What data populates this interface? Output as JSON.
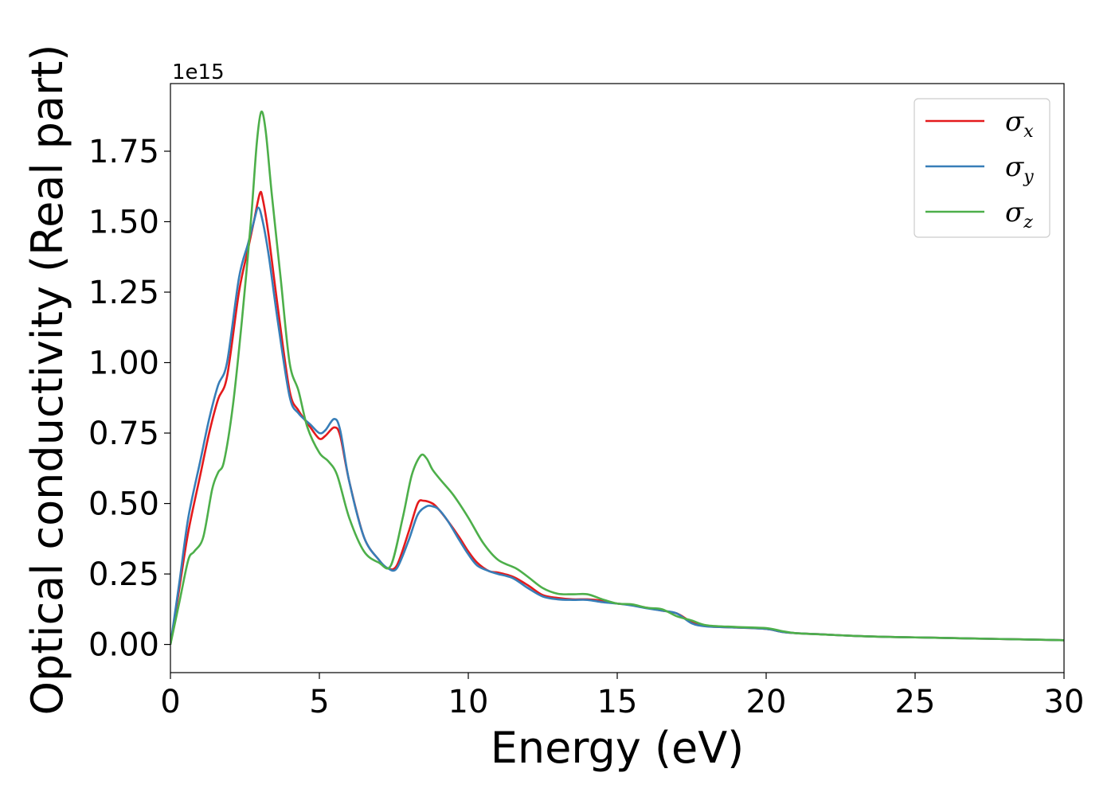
{
  "chart_data": {
    "type": "line",
    "title": "",
    "xlabel": "Energy (eV)",
    "ylabel": "Optical conductivity (Real part)",
    "y_offset_label": "1e15",
    "xlim": [
      0,
      30
    ],
    "ylim": [
      -0.1,
      1.99
    ],
    "y_scale_factor": 1000000000000000.0,
    "x_ticks": [
      0,
      5,
      10,
      15,
      20,
      25,
      30
    ],
    "x_tick_labels": [
      "0",
      "5",
      "10",
      "15",
      "20",
      "25",
      "30"
    ],
    "y_ticks": [
      0.0,
      0.25,
      0.5,
      0.75,
      1.0,
      1.25,
      1.5,
      1.75
    ],
    "y_tick_labels": [
      "0.00",
      "0.25",
      "0.50",
      "0.75",
      "1.00",
      "1.25",
      "1.50",
      "1.75"
    ],
    "grid": false,
    "legend_position": "top-right",
    "series": [
      {
        "name": "σx",
        "legend_base": "σ",
        "legend_sub": "x",
        "color": "#e41a1c",
        "x": [
          0,
          0.3,
          0.6,
          1.0,
          1.3,
          1.6,
          1.9,
          2.3,
          2.6,
          2.8,
          3.0,
          3.1,
          3.3,
          3.6,
          4.0,
          4.3,
          4.7,
          5.0,
          5.2,
          5.5,
          5.7,
          6.0,
          6.5,
          7.0,
          7.3,
          7.6,
          8.0,
          8.3,
          8.5,
          8.8,
          9.0,
          9.3,
          9.7,
          10.0,
          10.3,
          10.7,
          11.0,
          11.5,
          12.0,
          12.5,
          13.0,
          13.5,
          14.0,
          14.5,
          15.0,
          15.5,
          16.0,
          16.5,
          17.0,
          17.5,
          18.0,
          19.0,
          20.0,
          20.5,
          21.0,
          22.0,
          23.0,
          24.0,
          25.0,
          26.0,
          27.0,
          28.0,
          29.0,
          30.0
        ],
        "y": [
          0.0,
          0.2,
          0.4,
          0.6,
          0.75,
          0.87,
          0.95,
          1.25,
          1.4,
          1.5,
          1.6,
          1.58,
          1.45,
          1.2,
          0.9,
          0.83,
          0.77,
          0.73,
          0.74,
          0.77,
          0.74,
          0.58,
          0.38,
          0.3,
          0.27,
          0.28,
          0.4,
          0.5,
          0.51,
          0.5,
          0.48,
          0.44,
          0.38,
          0.33,
          0.29,
          0.26,
          0.255,
          0.24,
          0.21,
          0.175,
          0.165,
          0.16,
          0.16,
          0.155,
          0.145,
          0.14,
          0.13,
          0.12,
          0.11,
          0.08,
          0.065,
          0.06,
          0.055,
          0.045,
          0.04,
          0.035,
          0.03,
          0.027,
          0.025,
          0.023,
          0.021,
          0.019,
          0.017,
          0.015
        ]
      },
      {
        "name": "σy",
        "legend_base": "σ",
        "legend_sub": "y",
        "color": "#377eb8",
        "x": [
          0,
          0.3,
          0.6,
          1.0,
          1.3,
          1.6,
          1.9,
          2.3,
          2.6,
          2.8,
          2.95,
          3.1,
          3.3,
          3.6,
          4.0,
          4.3,
          4.7,
          5.0,
          5.2,
          5.5,
          5.7,
          6.0,
          6.5,
          7.0,
          7.3,
          7.6,
          8.0,
          8.3,
          8.6,
          8.8,
          9.0,
          9.3,
          9.7,
          10.0,
          10.3,
          10.7,
          11.0,
          11.5,
          12.0,
          12.5,
          13.0,
          13.5,
          14.0,
          14.5,
          15.0,
          15.5,
          16.0,
          16.5,
          17.0,
          17.5,
          18.0,
          19.0,
          20.0,
          20.5,
          21.0,
          22.0,
          23.0,
          24.0,
          25.0,
          26.0,
          27.0,
          28.0,
          29.0,
          30.0
        ],
        "y": [
          0.0,
          0.22,
          0.45,
          0.65,
          0.8,
          0.92,
          1.0,
          1.3,
          1.42,
          1.5,
          1.55,
          1.5,
          1.38,
          1.15,
          0.88,
          0.82,
          0.78,
          0.75,
          0.76,
          0.8,
          0.76,
          0.58,
          0.38,
          0.3,
          0.27,
          0.27,
          0.37,
          0.46,
          0.49,
          0.49,
          0.48,
          0.44,
          0.37,
          0.32,
          0.28,
          0.26,
          0.25,
          0.235,
          0.2,
          0.17,
          0.16,
          0.158,
          0.158,
          0.15,
          0.145,
          0.138,
          0.128,
          0.12,
          0.11,
          0.075,
          0.064,
          0.06,
          0.055,
          0.045,
          0.04,
          0.035,
          0.03,
          0.027,
          0.025,
          0.023,
          0.021,
          0.019,
          0.017,
          0.015
        ]
      },
      {
        "name": "σz",
        "legend_base": "σ",
        "legend_sub": "z",
        "color": "#4daf4a",
        "x": [
          0,
          0.3,
          0.6,
          0.8,
          1.1,
          1.4,
          1.6,
          1.8,
          2.1,
          2.4,
          2.7,
          2.9,
          3.05,
          3.2,
          3.4,
          3.7,
          4.0,
          4.3,
          4.6,
          5.0,
          5.3,
          5.6,
          6.0,
          6.5,
          7.0,
          7.4,
          7.8,
          8.1,
          8.4,
          8.6,
          8.8,
          9.1,
          9.5,
          10.0,
          10.5,
          11.0,
          11.6,
          12.0,
          12.5,
          13.0,
          13.5,
          14.0,
          14.5,
          15.0,
          15.5,
          16.0,
          16.5,
          17.0,
          17.5,
          18.0,
          19.0,
          20.0,
          20.5,
          21.0,
          22.0,
          23.0,
          24.0,
          25.0,
          26.0,
          27.0,
          28.0,
          29.0,
          30.0
        ],
        "y": [
          0.0,
          0.15,
          0.3,
          0.33,
          0.38,
          0.55,
          0.61,
          0.65,
          0.85,
          1.15,
          1.5,
          1.78,
          1.89,
          1.82,
          1.6,
          1.3,
          1.0,
          0.9,
          0.77,
          0.68,
          0.65,
          0.6,
          0.45,
          0.33,
          0.29,
          0.28,
          0.45,
          0.6,
          0.67,
          0.66,
          0.62,
          0.58,
          0.53,
          0.45,
          0.36,
          0.3,
          0.27,
          0.24,
          0.2,
          0.18,
          0.178,
          0.178,
          0.16,
          0.145,
          0.142,
          0.13,
          0.125,
          0.1,
          0.085,
          0.068,
          0.062,
          0.058,
          0.048,
          0.04,
          0.035,
          0.03,
          0.027,
          0.025,
          0.023,
          0.021,
          0.019,
          0.017,
          0.015
        ]
      }
    ]
  }
}
